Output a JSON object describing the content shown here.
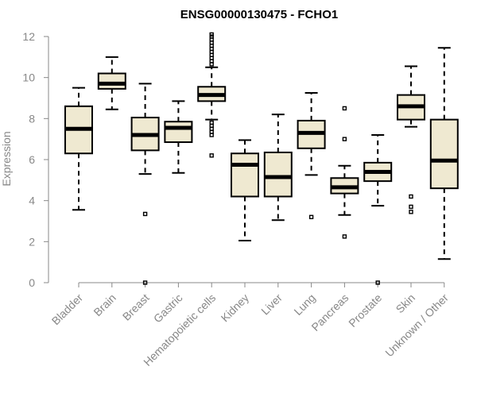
{
  "chart_data": {
    "type": "boxplot",
    "title": "ENSG00000130475 - FCHO1",
    "xlabel": "",
    "ylabel": "Expression",
    "ylim": [
      0,
      12
    ],
    "yticks": [
      0,
      2,
      4,
      6,
      8,
      10,
      12
    ],
    "box_fill": "#efe9d1",
    "categories": [
      "Bladder",
      "Brain",
      "Breast",
      "Gastric",
      "Hematopoietic cells",
      "Kidney",
      "Liver",
      "Lung",
      "Pancreas",
      "Prostate",
      "Skin",
      "Unknown / Other"
    ],
    "boxes": [
      {
        "whisker_low": 3.55,
        "q1": 6.3,
        "median": 7.5,
        "q3": 8.6,
        "whisker_high": 9.5,
        "outliers": []
      },
      {
        "whisker_low": 8.45,
        "q1": 9.45,
        "median": 9.7,
        "q3": 10.2,
        "whisker_high": 11.0,
        "outliers": []
      },
      {
        "whisker_low": 5.3,
        "q1": 6.45,
        "median": 7.2,
        "q3": 8.05,
        "whisker_high": 9.7,
        "outliers": [
          3.35,
          0.0
        ]
      },
      {
        "whisker_low": 5.35,
        "q1": 6.85,
        "median": 7.55,
        "q3": 7.85,
        "whisker_high": 8.85,
        "outliers": []
      },
      {
        "whisker_low": 7.95,
        "q1": 8.85,
        "median": 9.15,
        "q3": 9.55,
        "whisker_high": 10.5,
        "outliers": [
          12.1,
          12.0,
          11.85,
          11.7,
          11.55,
          11.4,
          11.25,
          11.1,
          10.95,
          10.8,
          10.65,
          7.8,
          7.65,
          7.5,
          7.35,
          7.2,
          6.2
        ]
      },
      {
        "whisker_low": 2.05,
        "q1": 4.2,
        "median": 5.75,
        "q3": 6.3,
        "whisker_high": 6.95,
        "outliers": []
      },
      {
        "whisker_low": 3.05,
        "q1": 4.2,
        "median": 5.15,
        "q3": 6.35,
        "whisker_high": 8.2,
        "outliers": []
      },
      {
        "whisker_low": 5.25,
        "q1": 6.55,
        "median": 7.3,
        "q3": 7.9,
        "whisker_high": 9.25,
        "outliers": [
          3.2
        ]
      },
      {
        "whisker_low": 3.3,
        "q1": 4.35,
        "median": 4.65,
        "q3": 5.1,
        "whisker_high": 5.7,
        "outliers": [
          8.5,
          7.0,
          2.25
        ]
      },
      {
        "whisker_low": 3.75,
        "q1": 4.95,
        "median": 5.4,
        "q3": 5.85,
        "whisker_high": 7.2,
        "outliers": [
          0.0
        ]
      },
      {
        "whisker_low": 7.6,
        "q1": 7.95,
        "median": 8.6,
        "q3": 9.15,
        "whisker_high": 10.55,
        "outliers": [
          4.2,
          3.7,
          3.45
        ]
      },
      {
        "whisker_low": 1.15,
        "q1": 4.6,
        "median": 5.95,
        "q3": 7.95,
        "whisker_high": 11.45,
        "outliers": []
      }
    ]
  }
}
